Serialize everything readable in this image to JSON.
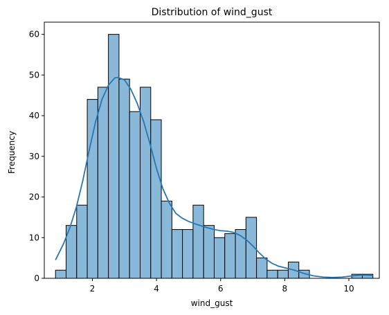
{
  "chart_data": {
    "type": "bar",
    "subtype": "histogram-with-kde",
    "title": "Distribution of wind_gust",
    "xlabel": "wind_gust",
    "ylabel": "Frequency",
    "xlim": [
      0.5,
      10.95
    ],
    "ylim": [
      0,
      63
    ],
    "xticks": [
      2,
      4,
      6,
      8,
      10
    ],
    "yticks": [
      0,
      10,
      20,
      30,
      40,
      50,
      60
    ],
    "grid": false,
    "bar_color": "#8ab8d8",
    "bar_edge_color": "#000000",
    "kde_color": "#2577b4",
    "bins": [
      {
        "x0": 0.85,
        "x1": 1.18,
        "value": 2
      },
      {
        "x0": 1.18,
        "x1": 1.51,
        "value": 13
      },
      {
        "x0": 1.51,
        "x1": 1.84,
        "value": 18
      },
      {
        "x0": 1.84,
        "x1": 2.17,
        "value": 44
      },
      {
        "x0": 2.17,
        "x1": 2.5,
        "value": 47
      },
      {
        "x0": 2.5,
        "x1": 2.83,
        "value": 60
      },
      {
        "x0": 2.83,
        "x1": 3.16,
        "value": 49
      },
      {
        "x0": 3.16,
        "x1": 3.49,
        "value": 41
      },
      {
        "x0": 3.49,
        "x1": 3.82,
        "value": 47
      },
      {
        "x0": 3.82,
        "x1": 4.15,
        "value": 39
      },
      {
        "x0": 4.15,
        "x1": 4.48,
        "value": 19
      },
      {
        "x0": 4.48,
        "x1": 4.81,
        "value": 12
      },
      {
        "x0": 4.81,
        "x1": 5.14,
        "value": 12
      },
      {
        "x0": 5.14,
        "x1": 5.47,
        "value": 18
      },
      {
        "x0": 5.47,
        "x1": 5.8,
        "value": 13
      },
      {
        "x0": 5.8,
        "x1": 6.13,
        "value": 10
      },
      {
        "x0": 6.13,
        "x1": 6.46,
        "value": 11
      },
      {
        "x0": 6.46,
        "x1": 6.79,
        "value": 12
      },
      {
        "x0": 6.79,
        "x1": 7.12,
        "value": 15
      },
      {
        "x0": 7.12,
        "x1": 7.45,
        "value": 5
      },
      {
        "x0": 7.45,
        "x1": 7.78,
        "value": 2
      },
      {
        "x0": 7.78,
        "x1": 8.11,
        "value": 2
      },
      {
        "x0": 8.11,
        "x1": 8.44,
        "value": 4
      },
      {
        "x0": 8.44,
        "x1": 8.77,
        "value": 2
      },
      {
        "x0": 8.77,
        "x1": 9.1,
        "value": 0
      },
      {
        "x0": 9.1,
        "x1": 9.43,
        "value": 0
      },
      {
        "x0": 9.43,
        "x1": 9.76,
        "value": 0
      },
      {
        "x0": 9.76,
        "x1": 10.09,
        "value": 0
      },
      {
        "x0": 10.09,
        "x1": 10.42,
        "value": 1
      },
      {
        "x0": 10.42,
        "x1": 10.75,
        "value": 1
      }
    ],
    "kde": {
      "x": [
        0.85,
        1.1,
        1.3,
        1.5,
        1.7,
        1.9,
        2.1,
        2.3,
        2.5,
        2.7,
        2.8,
        3.0,
        3.2,
        3.4,
        3.6,
        3.8,
        4.0,
        4.2,
        4.4,
        4.6,
        4.8,
        5.0,
        5.2,
        5.4,
        5.6,
        5.8,
        6.0,
        6.2,
        6.4,
        6.6,
        6.8,
        7.0,
        7.2,
        7.4,
        7.6,
        7.8,
        8.0,
        8.3,
        8.6,
        8.9,
        9.2,
        9.5,
        9.8,
        10.1,
        10.4,
        10.75
      ],
      "y": [
        4.5,
        8.5,
        12.5,
        17.5,
        24.0,
        31.5,
        38.5,
        44.0,
        47.5,
        49.3,
        49.4,
        48.8,
        46.5,
        43.0,
        38.5,
        33.0,
        27.0,
        22.0,
        18.5,
        16.0,
        14.8,
        14.0,
        13.4,
        12.9,
        12.4,
        12.0,
        11.7,
        11.6,
        11.3,
        10.6,
        9.5,
        8.0,
        6.3,
        4.8,
        3.7,
        3.0,
        2.6,
        2.0,
        1.2,
        0.6,
        0.3,
        0.2,
        0.3,
        0.6,
        0.8,
        0.7
      ]
    }
  }
}
